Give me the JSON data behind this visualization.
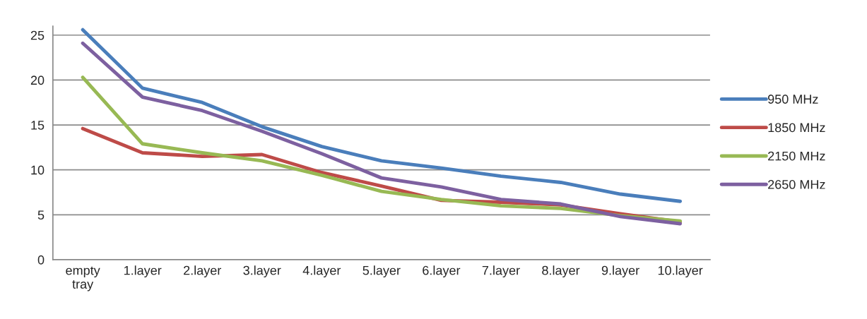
{
  "chart_data": {
    "type": "line",
    "categories": [
      "empty\ntray",
      "1.layer",
      "2.layer",
      "3.layer",
      "4.layer",
      "5.layer",
      "6.layer",
      "7.layer",
      "8.layer",
      "9.layer",
      "10.layer"
    ],
    "series": [
      {
        "name": "950 MHz",
        "color": "#4a7ebb",
        "values": [
          25.6,
          19.1,
          17.5,
          14.8,
          12.6,
          11.0,
          10.2,
          9.3,
          8.6,
          7.3,
          6.5
        ]
      },
      {
        "name": "1850 MHz",
        "color": "#be4b48",
        "values": [
          14.6,
          11.9,
          11.5,
          11.7,
          9.7,
          8.2,
          6.6,
          6.4,
          6.1,
          5.1,
          4.2
        ]
      },
      {
        "name": "2150 MHz",
        "color": "#98b954",
        "values": [
          20.3,
          12.9,
          11.9,
          11.0,
          9.4,
          7.6,
          6.7,
          6.0,
          5.7,
          4.9,
          4.3
        ]
      },
      {
        "name": "2650 MHz",
        "color": "#7d60a0",
        "values": [
          24.1,
          18.1,
          16.6,
          14.3,
          11.8,
          9.1,
          8.1,
          6.7,
          6.2,
          4.8,
          4.0
        ]
      }
    ],
    "ylim": [
      0,
      26
    ],
    "yticks": [
      0,
      5,
      10,
      15,
      20,
      25
    ],
    "grid": "y",
    "legend": "right",
    "marker": "none",
    "line_style": "solid"
  }
}
